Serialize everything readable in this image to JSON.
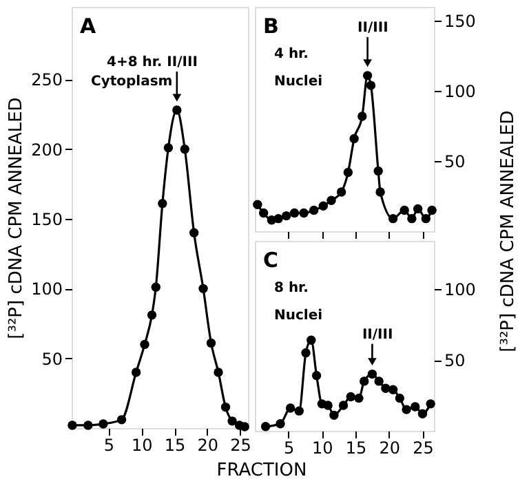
{
  "chart_data": [
    {
      "type": "line",
      "ylabel": "[³²P] cDNA CPM ANNEALED",
      "xlim": [
        -0.6,
        26.2
      ],
      "ylim": [
        0,
        302
      ],
      "xticks": [
        5,
        10,
        15,
        20,
        25
      ],
      "yticks": [
        50,
        100,
        150,
        200,
        250
      ],
      "marker": "circle",
      "line_style": "solid",
      "x": [
        -0.5,
        1.9,
        4.2,
        7.0,
        9.2,
        10.5,
        11.6,
        12.2,
        13.2,
        14.1,
        15.4,
        16.6,
        18.0,
        19.4,
        20.6,
        21.7,
        22.8,
        23.8,
        24.9,
        25.7
      ],
      "series": [
        {
          "color": "#000000",
          "values": [
            2,
            2,
            3,
            6,
            40,
            60,
            81,
            101,
            161,
            201,
            228,
            200,
            140,
            100,
            61,
            40,
            15,
            5,
            2,
            1
          ]
        }
      ],
      "annotations": [
        "A",
        {
          "text": "4+8 hr. II/III",
          "x": 15.4,
          "y": 228
        },
        "Cytoplasm"
      ]
    },
    {
      "type": "line",
      "ylabel": "[³²P] cDNA CPM ANNEALED",
      "xlim": [
        0,
        26.7
      ],
      "ylim": [
        0,
        160
      ],
      "xticks": [
        5,
        10,
        15,
        20,
        25
      ],
      "yticks": [
        50,
        100,
        150
      ],
      "tick_labels": "y",
      "marker": "circle",
      "line_style": "solid",
      "x": [
        0.4,
        1.3,
        2.5,
        3.5,
        4.7,
        5.9,
        7.3,
        8.8,
        10.2,
        11.4,
        12.9,
        13.9,
        14.8,
        16.0,
        16.8,
        17.3,
        18.4,
        18.7,
        20.6,
        22.3,
        23.4,
        24.3,
        25.5,
        26.4
      ],
      "series": [
        {
          "color": "#000000",
          "values": [
            19,
            13,
            8,
            9,
            11,
            13,
            13,
            15,
            18,
            22,
            28,
            42,
            66,
            82,
            111,
            104,
            43,
            28,
            9,
            15,
            9,
            16,
            9,
            15
          ]
        }
      ],
      "annotations": [
        "B",
        "4 hr.",
        "Nuclei",
        {
          "text": "II/III",
          "x": 16.8,
          "y": 111
        }
      ]
    },
    {
      "type": "line",
      "xlabel": "FRACTION",
      "xlim": [
        0,
        26.7
      ],
      "ylim": [
        0,
        134
      ],
      "xticks": [
        5,
        10,
        15,
        20,
        25
      ],
      "yticks": [
        50,
        100
      ],
      "marker": "circle",
      "line_style": "solid",
      "x": [
        1.6,
        3.8,
        5.3,
        6.6,
        7.6,
        8.4,
        9.2,
        10.0,
        10.9,
        11.8,
        13.2,
        14.3,
        15.5,
        16.3,
        17.5,
        18.5,
        19.5,
        20.6,
        21.6,
        22.6,
        23.9,
        25.0,
        26.2
      ],
      "series": [
        {
          "color": "#000000",
          "values": [
            3,
            5,
            16,
            14,
            55,
            64,
            39,
            19,
            18,
            11,
            18,
            24,
            23,
            35,
            40,
            35,
            30,
            29,
            23,
            15,
            17,
            12,
            19
          ]
        }
      ],
      "annotations": [
        "C",
        "8 hr.",
        "Nuclei",
        {
          "text": "II/III",
          "x": 17.5,
          "y": 40
        }
      ]
    }
  ]
}
